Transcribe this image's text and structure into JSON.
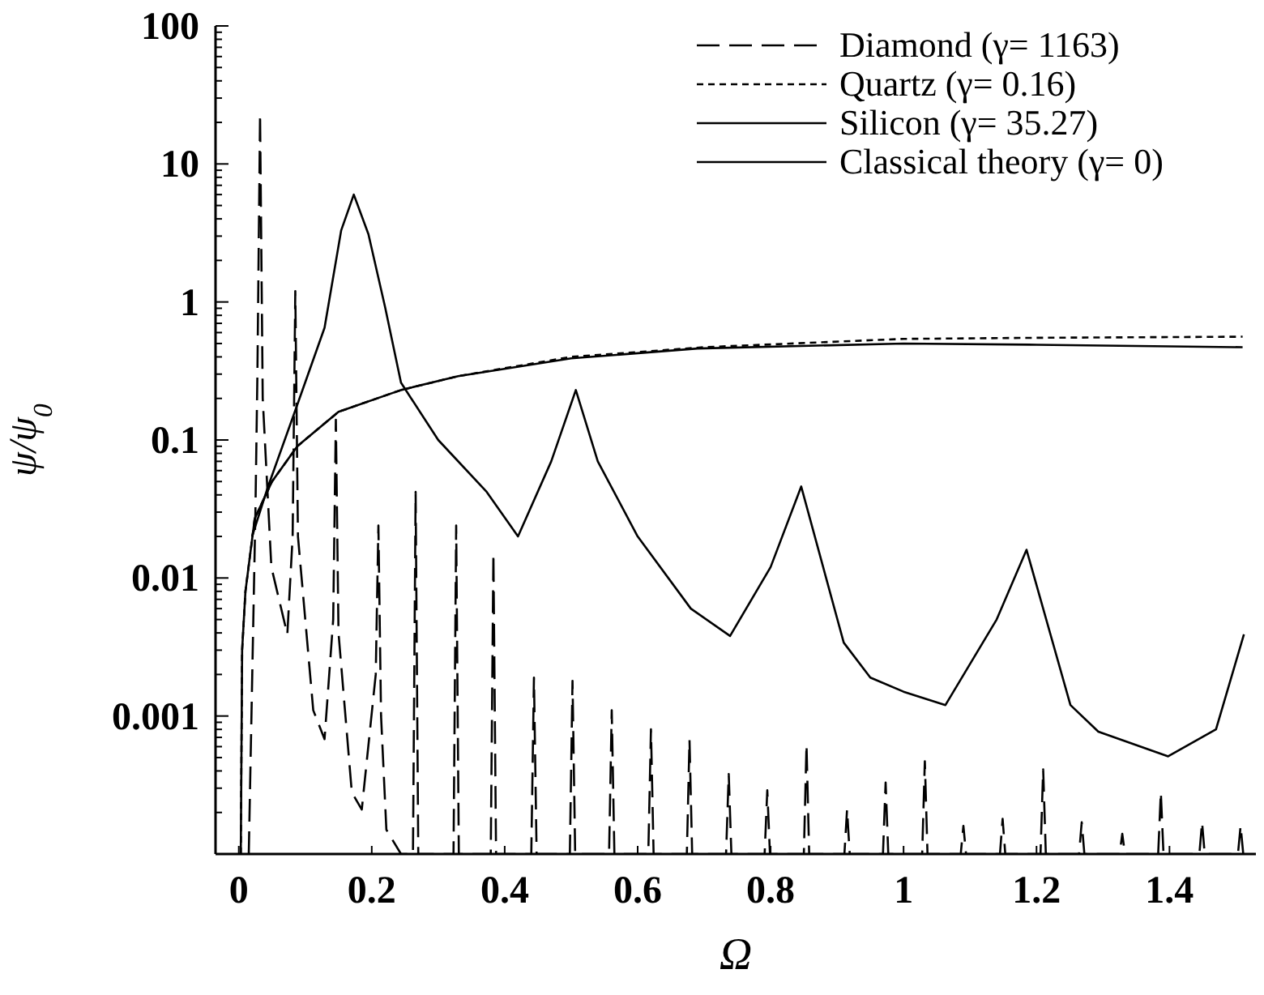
{
  "chart_data": {
    "type": "line",
    "xlabel": "Ω",
    "ylabel": "ψ/ψ$_{0}$",
    "log": "y",
    "legend": "top right",
    "xlim": [
      -0.035,
      1.53
    ],
    "ylim": [
      0.0001,
      100
    ],
    "xticks": [
      0,
      0.2,
      0.4,
      0.6,
      0.8,
      1,
      1.2,
      1.4
    ],
    "yticks": [
      {
        "value": 0.0001,
        "label": null
      },
      {
        "value": 0.0002,
        "label": null
      },
      {
        "value": 0.0003,
        "label": null
      },
      {
        "value": 0.0004,
        "label": null
      },
      {
        "value": 0.0005,
        "label": null
      },
      {
        "value": 0.0006,
        "label": null
      },
      {
        "value": 0.0007,
        "label": null
      },
      {
        "value": 0.0008,
        "label": null
      },
      {
        "value": 0.0009,
        "label": null
      },
      0.001,
      {
        "value": 0.002,
        "label": null
      },
      {
        "value": 0.003,
        "label": null
      },
      {
        "value": 0.004,
        "label": null
      },
      {
        "value": 0.005,
        "label": null
      },
      {
        "value": 0.006,
        "label": null
      },
      {
        "value": 0.007,
        "label": null
      },
      {
        "value": 0.008,
        "label": null
      },
      {
        "value": 0.009,
        "label": null
      },
      0.01,
      {
        "value": 0.02,
        "label": null
      },
      {
        "value": 0.03,
        "label": null
      },
      {
        "value": 0.04,
        "label": null
      },
      {
        "value": 0.05,
        "label": null
      },
      {
        "value": 0.06,
        "label": null
      },
      {
        "value": 0.07,
        "label": null
      },
      {
        "value": 0.08,
        "label": null
      },
      {
        "value": 0.09,
        "label": null
      },
      0.1,
      {
        "value": 0.2,
        "label": null
      },
      {
        "value": 0.3,
        "label": null
      },
      {
        "value": 0.4,
        "label": null
      },
      {
        "value": 0.5,
        "label": null
      },
      {
        "value": 0.6,
        "label": null
      },
      {
        "value": 0.7,
        "label": null
      },
      {
        "value": 0.8,
        "label": null
      },
      {
        "value": 0.9,
        "label": null
      },
      1,
      {
        "value": 2,
        "label": null
      },
      {
        "value": 3,
        "label": null
      },
      {
        "value": 4,
        "label": null
      },
      {
        "value": 5,
        "label": null
      },
      {
        "value": 6,
        "label": null
      },
      {
        "value": 7,
        "label": null
      },
      {
        "value": 8,
        "label": null
      },
      {
        "value": 9,
        "label": null
      },
      10,
      {
        "value": 20,
        "label": null
      },
      {
        "value": 30,
        "label": null
      },
      {
        "value": 40,
        "label": null
      },
      {
        "value": 50,
        "label": null
      },
      {
        "value": 60,
        "label": null
      },
      {
        "value": 70,
        "label": null
      },
      {
        "value": 80,
        "label": null
      },
      {
        "value": 90,
        "label": null
      },
      100
    ],
    "series": [
      {
        "name": "Diamond (γ= 1163)",
        "color": "#000000",
        "line_style": "dashed",
        "x": [
          0.015,
          0.025,
          0.028,
          0.032,
          0.036,
          0.049,
          0.073,
          0.081,
          0.085,
          0.089,
          0.112,
          0.129,
          0.142,
          0.146,
          0.15,
          0.17,
          0.185,
          0.206,
          0.21,
          0.214,
          0.222,
          0.244,
          0.262,
          0.266,
          0.27,
          0.323,
          0.327,
          0.331,
          0.379,
          0.383,
          0.387,
          0.44,
          0.444,
          0.448,
          0.498,
          0.502,
          0.506,
          0.557,
          0.561,
          0.565,
          0.616,
          0.62,
          0.624,
          0.674,
          0.678,
          0.682,
          0.733,
          0.737,
          0.741,
          0.791,
          0.795,
          0.799,
          0.85,
          0.854,
          0.858,
          0.911,
          0.915,
          0.919,
          0.969,
          0.973,
          0.977,
          1.028,
          1.032,
          1.036,
          1.086,
          1.09,
          1.094,
          1.145,
          1.149,
          1.153,
          1.206,
          1.21,
          1.214,
          1.264,
          1.268,
          1.272,
          1.325,
          1.329,
          1.333,
          1.383,
          1.387,
          1.391,
          1.445,
          1.449,
          1.453,
          1.503,
          1.507,
          1.511
        ],
        "values": [
          0.0001,
          0.03,
          0.3,
          23,
          0.2,
          0.012,
          0.0039,
          0.02,
          1.2,
          0.02,
          0.0011,
          0.00068,
          0.005,
          0.14,
          0.004,
          0.00028,
          0.00021,
          0.002,
          0.024,
          0.001,
          0.00015,
          0.0001,
          0.0001,
          0.042,
          0.0001,
          0.0001,
          0.024,
          0.0001,
          0.0001,
          0.015,
          0.0001,
          0.0001,
          0.0019,
          0.0001,
          0.0001,
          0.0018,
          0.0001,
          0.0001,
          0.0011,
          0.0001,
          0.0001,
          0.0008,
          0.0001,
          0.0001,
          0.00067,
          0.0001,
          0.0001,
          0.00038,
          0.0001,
          0.0001,
          0.00029,
          0.0001,
          0.0001,
          0.00062,
          0.0001,
          0.0001,
          0.00021,
          0.0001,
          0.0001,
          0.00033,
          0.0001,
          0.0001,
          0.00047,
          0.0001,
          0.0001,
          0.00016,
          0.0001,
          0.0001,
          0.00018,
          0.0001,
          0.0001,
          0.00041,
          0.0001,
          0.0001,
          0.00017,
          0.0001,
          0.0001,
          0.00014,
          0.0001,
          0.0001,
          0.00028,
          0.0001,
          0.0001,
          0.00017,
          0.0001,
          0.0001,
          0.00016,
          0.0001
        ]
      },
      {
        "name": "Quartz (γ= 0.16)",
        "color": "#000000",
        "line_style": "dotted",
        "x": [
          0.003,
          0.005,
          0.01,
          0.024,
          0.05,
          0.088,
          0.15,
          0.244,
          0.33,
          0.5,
          0.7,
          1.0,
          1.2,
          1.51
        ],
        "values": [
          0.0001,
          0.003,
          0.008,
          0.027,
          0.05,
          0.09,
          0.16,
          0.23,
          0.29,
          0.4,
          0.47,
          0.54,
          0.55,
          0.56
        ]
      },
      {
        "name": "Silicon (γ= 35.27)",
        "color": "#000000",
        "line_style": "solid",
        "x": [
          0.02,
          0.044,
          0.088,
          0.129,
          0.154,
          0.173,
          0.195,
          0.22,
          0.244,
          0.3,
          0.373,
          0.42,
          0.47,
          0.507,
          0.54,
          0.6,
          0.68,
          0.739,
          0.8,
          0.846,
          0.91,
          0.95,
          1.0,
          1.063,
          1.14,
          1.185,
          1.251,
          1.293,
          1.398,
          1.47,
          1.512
        ],
        "values": [
          0.02,
          0.046,
          0.18,
          0.65,
          3.3,
          6,
          3.1,
          0.92,
          0.26,
          0.1,
          0.042,
          0.02,
          0.07,
          0.23,
          0.07,
          0.02,
          0.006,
          0.0038,
          0.012,
          0.046,
          0.0034,
          0.0019,
          0.0015,
          0.0012,
          0.005,
          0.016,
          0.0012,
          0.00077,
          0.00051,
          0.0008,
          0.0039
        ]
      },
      {
        "name": "Classical theory (γ= 0)",
        "color": "#000000",
        "line_style": "solid",
        "x": [
          0.003,
          0.005,
          0.01,
          0.024,
          0.05,
          0.088,
          0.15,
          0.244,
          0.33,
          0.5,
          0.69,
          1.0,
          1.2,
          1.51
        ],
        "values": [
          0.0001,
          0.003,
          0.008,
          0.027,
          0.05,
          0.09,
          0.16,
          0.23,
          0.29,
          0.39,
          0.46,
          0.5,
          0.49,
          0.47
        ]
      }
    ]
  }
}
